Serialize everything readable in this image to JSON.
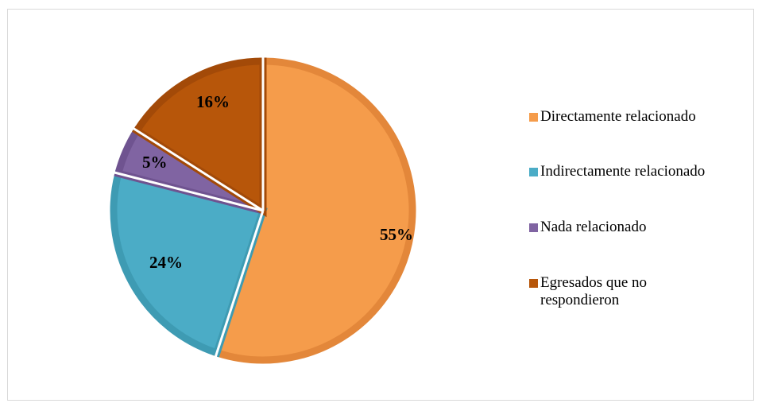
{
  "chart_data": {
    "type": "pie",
    "categories": [
      "Directamente relacionado",
      "Indirectamente relacionado",
      "Nada relacionado",
      "Egresados que no respondieron"
    ],
    "values": [
      55,
      24,
      5,
      16
    ],
    "labels": [
      "55%",
      "24%",
      "5%",
      "16%"
    ],
    "colors": [
      "#F59C4B",
      "#4BACC6",
      "#8064A2",
      "#B7560A"
    ],
    "edge_colors": [
      "#E3873A",
      "#3E9BB3",
      "#6F5390",
      "#A34A08"
    ],
    "legend_placement": "right"
  }
}
